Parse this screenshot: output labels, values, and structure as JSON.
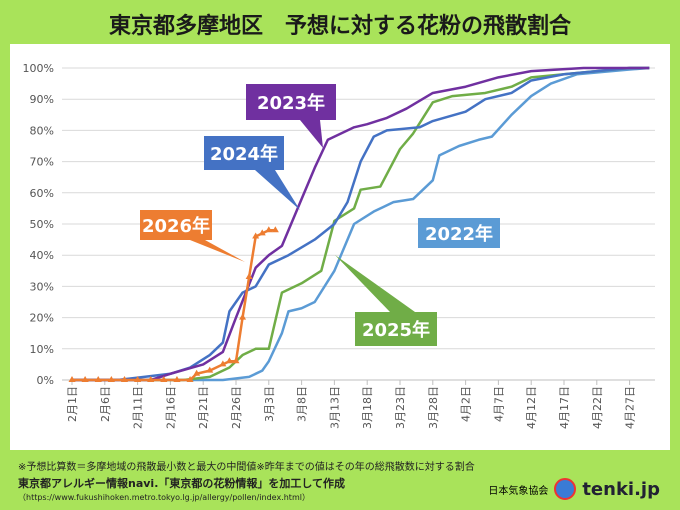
{
  "title": "東京都多摩地区　予想に対する花粉の飛散割合",
  "chart_data": {
    "type": "line",
    "ylim": [
      0,
      100
    ],
    "yticks": [
      "0%",
      "10%",
      "20%",
      "30%",
      "40%",
      "50%",
      "60%",
      "70%",
      "80%",
      "90%",
      "100%"
    ],
    "xticks": [
      "2月1日",
      "2月6日",
      "2月11日",
      "2月16日",
      "2月21日",
      "2月26日",
      "3月3日",
      "3月8日",
      "3月13日",
      "3月18日",
      "3月23日",
      "3月28日",
      "4月2日",
      "4月7日",
      "4月12日",
      "4月17日",
      "4月22日",
      "4月27日"
    ],
    "grid": true,
    "series": [
      {
        "name": "2022年",
        "color": "#5b9bd5",
        "points": [
          [
            "2-01",
            0
          ],
          [
            "2-24",
            0
          ],
          [
            "2-28",
            1
          ],
          [
            "3-02",
            3
          ],
          [
            "3-03",
            6
          ],
          [
            "3-05",
            15
          ],
          [
            "3-06",
            22
          ],
          [
            "3-08",
            23
          ],
          [
            "3-10",
            25
          ],
          [
            "3-13",
            35
          ],
          [
            "3-16",
            50
          ],
          [
            "3-19",
            54
          ],
          [
            "3-22",
            57
          ],
          [
            "3-25",
            58
          ],
          [
            "3-28",
            64
          ],
          [
            "3-29",
            72
          ],
          [
            "4-01",
            75
          ],
          [
            "4-04",
            77
          ],
          [
            "4-06",
            78
          ],
          [
            "4-09",
            85
          ],
          [
            "4-12",
            91
          ],
          [
            "4-15",
            95
          ],
          [
            "4-19",
            98
          ],
          [
            "4-27",
            99.5
          ],
          [
            "4-30",
            100
          ]
        ]
      },
      {
        "name": "2023年",
        "color": "#7030a0",
        "points": [
          [
            "2-01",
            0
          ],
          [
            "2-13",
            0
          ],
          [
            "2-16",
            2
          ],
          [
            "2-21",
            5
          ],
          [
            "2-24",
            9
          ],
          [
            "2-26",
            20
          ],
          [
            "3-01",
            36
          ],
          [
            "3-03",
            40
          ],
          [
            "3-05",
            43
          ],
          [
            "3-08",
            58
          ],
          [
            "3-10",
            68
          ],
          [
            "3-12",
            77
          ],
          [
            "3-16",
            81
          ],
          [
            "3-18",
            82
          ],
          [
            "3-21",
            84
          ],
          [
            "3-24",
            87
          ],
          [
            "3-28",
            92
          ],
          [
            "4-02",
            94
          ],
          [
            "4-07",
            97
          ],
          [
            "4-12",
            99
          ],
          [
            "4-20",
            100
          ],
          [
            "4-30",
            100
          ]
        ]
      },
      {
        "name": "2024年",
        "color": "#4472c4",
        "points": [
          [
            "2-01",
            0
          ],
          [
            "2-08",
            0
          ],
          [
            "2-12",
            1
          ],
          [
            "2-16",
            2
          ],
          [
            "2-19",
            4
          ],
          [
            "2-22",
            8
          ],
          [
            "2-24",
            12
          ],
          [
            "2-25",
            22
          ],
          [
            "2-27",
            28
          ],
          [
            "3-01",
            30
          ],
          [
            "3-03",
            37
          ],
          [
            "3-06",
            40
          ],
          [
            "3-10",
            45
          ],
          [
            "3-13",
            50
          ],
          [
            "3-15",
            57
          ],
          [
            "3-17",
            70
          ],
          [
            "3-19",
            78
          ],
          [
            "3-21",
            80
          ],
          [
            "3-26",
            81
          ],
          [
            "3-28",
            83
          ],
          [
            "4-02",
            86
          ],
          [
            "4-05",
            90
          ],
          [
            "4-09",
            92
          ],
          [
            "4-12",
            96
          ],
          [
            "4-17",
            98
          ],
          [
            "4-27",
            100
          ],
          [
            "4-30",
            100
          ]
        ]
      },
      {
        "name": "2025年",
        "color": "#70ad47",
        "points": [
          [
            "2-01",
            0
          ],
          [
            "2-18",
            0
          ],
          [
            "2-22",
            1
          ],
          [
            "2-25",
            4
          ],
          [
            "2-27",
            8
          ],
          [
            "3-01",
            10
          ],
          [
            "3-03",
            10
          ],
          [
            "3-05",
            28
          ],
          [
            "3-08",
            31
          ],
          [
            "3-11",
            35
          ],
          [
            "3-13",
            51
          ],
          [
            "3-16",
            55
          ],
          [
            "3-17",
            61
          ],
          [
            "3-20",
            62
          ],
          [
            "3-23",
            74
          ],
          [
            "3-25",
            79
          ],
          [
            "3-28",
            89
          ],
          [
            "3-31",
            91
          ],
          [
            "4-05",
            92
          ],
          [
            "4-09",
            94
          ],
          [
            "4-12",
            97
          ],
          [
            "4-17",
            98
          ],
          [
            "4-27",
            100
          ],
          [
            "4-30",
            100
          ]
        ]
      },
      {
        "name": "2026年",
        "color": "#ed7d31",
        "markers": "triangle",
        "points": [
          [
            "2-01",
            0
          ],
          [
            "2-03",
            0
          ],
          [
            "2-05",
            0
          ],
          [
            "2-07",
            0
          ],
          [
            "2-09",
            0
          ],
          [
            "2-11",
            0
          ],
          [
            "2-13",
            0
          ],
          [
            "2-15",
            0
          ],
          [
            "2-17",
            0
          ],
          [
            "2-19",
            0
          ],
          [
            "2-20",
            2
          ],
          [
            "2-22",
            3
          ],
          [
            "2-24",
            5
          ],
          [
            "2-25",
            6
          ],
          [
            "2-26",
            6
          ],
          [
            "2-27",
            20
          ],
          [
            "2-28",
            33
          ],
          [
            "3-01",
            46
          ],
          [
            "3-02",
            47
          ],
          [
            "3-03",
            48
          ],
          [
            "3-04",
            48
          ]
        ]
      }
    ]
  },
  "notes": {
    "line1": "※予想比算数＝多摩地域の飛散最小数と最大の中間値※昨年までの値はその年の総飛散数に対する割合",
    "line2": "東京都アレルギー情報navi.「東京都の花粉情報」を加工して作成",
    "line3": "（https://www.fukushihoken.metro.tokyo.lg.jp/allergy/pollen/index.html）"
  },
  "brand": {
    "org": "日本気象協会",
    "site": "tenki.jp"
  }
}
